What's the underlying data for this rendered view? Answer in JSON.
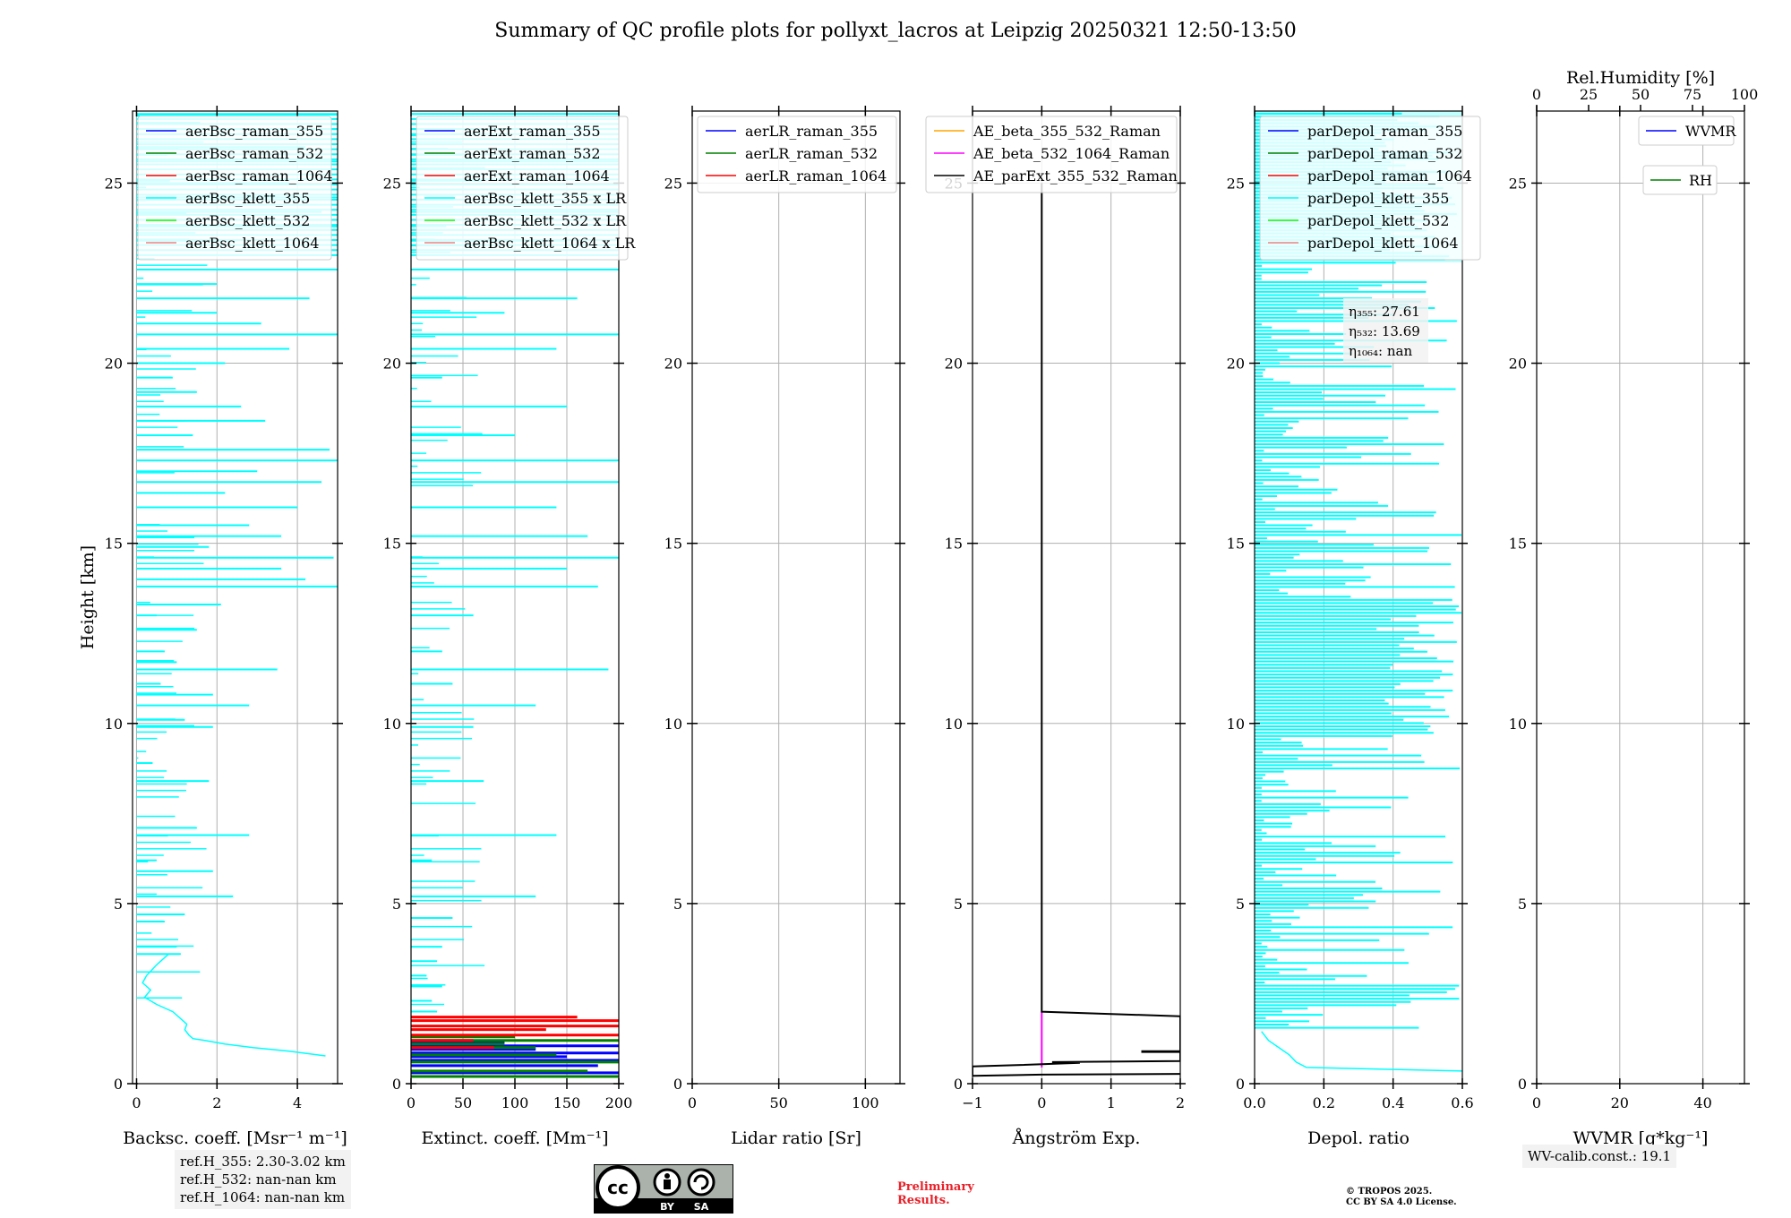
{
  "title": "Summary of QC profile plots for pollyxt_lacros at Leipzig 20250321 12:50-13:50",
  "y_label": "Height [km]",
  "colors": {
    "raman_355": "#0000ff",
    "raman_532": "#008000",
    "raman_1064": "#ff0000",
    "klett_355": "#00ffff",
    "klett_532": "#00ff00",
    "klett_1064": "#f08080",
    "ae_beta_355_532": "#ffa500",
    "ae_beta_532_1064": "#ff00ff",
    "ae_parext": "#000000",
    "grid": "#b0b0b0",
    "prelim": "#e8222a"
  },
  "chart_data": [
    {
      "type": "line",
      "panel": "backscatter",
      "xlabel": "Backsc. coeff. [Msr⁻¹ m⁻¹]",
      "xlim": [
        -0.1,
        5.0
      ],
      "ylim": [
        0,
        27
      ],
      "xticks": [
        "0",
        "2",
        "4"
      ],
      "yticks": [
        "0",
        "5",
        "10",
        "15",
        "20",
        "25"
      ],
      "legend": [
        "aerBsc_raman_355",
        "aerBsc_raman_532",
        "aerBsc_raman_1064",
        "aerBsc_klett_355",
        "aerBsc_klett_532",
        "aerBsc_klett_1064"
      ],
      "series": [
        {
          "name": "aerBsc_klett_355",
          "profile_h": [
            0.77,
            0.9,
            1.0,
            1.1,
            1.2,
            1.25,
            1.35,
            1.5,
            1.65,
            1.8,
            2.0,
            2.2,
            2.4,
            2.6,
            2.8,
            3.0,
            3.3,
            3.6
          ],
          "profile_x": [
            4.7,
            3.8,
            2.9,
            2.2,
            1.7,
            1.4,
            1.3,
            1.2,
            1.25,
            1.1,
            0.9,
            0.5,
            0.2,
            0.35,
            0.15,
            0.25,
            0.5,
            0.8
          ],
          "spikes": [
            [
              3.6,
              1.1
            ],
            [
              3.8,
              1.0
            ],
            [
              4.5,
              0.7
            ],
            [
              4.7,
              1.2
            ],
            [
              5.2,
              2.4
            ],
            [
              5.9,
              1.9
            ],
            [
              6.2,
              0.5
            ],
            [
              6.9,
              2.8
            ],
            [
              7.1,
              1.5
            ],
            [
              8.4,
              1.8
            ],
            [
              8.9,
              0.4
            ],
            [
              9.9,
              1.9
            ],
            [
              10.1,
              1.2
            ],
            [
              10.5,
              2.8
            ],
            [
              10.8,
              1.9
            ],
            [
              11.1,
              0.6
            ],
            [
              11.5,
              3.5
            ],
            [
              11.7,
              1.0
            ],
            [
              12.0,
              0.7
            ],
            [
              12.6,
              1.5
            ],
            [
              13.0,
              0.5
            ],
            [
              13.3,
              2.1
            ],
            [
              13.8,
              5.0
            ],
            [
              14.0,
              4.2
            ],
            [
              14.3,
              3.6
            ],
            [
              14.6,
              4.9
            ],
            [
              14.9,
              1.8
            ],
            [
              15.2,
              3.6
            ],
            [
              15.5,
              2.8
            ],
            [
              16.0,
              4.0
            ],
            [
              16.4,
              2.2
            ],
            [
              16.7,
              4.6
            ],
            [
              17.0,
              3.0
            ],
            [
              17.3,
              5.0
            ],
            [
              17.6,
              4.8
            ],
            [
              18.0,
              1.4
            ],
            [
              18.4,
              3.2
            ],
            [
              18.8,
              2.6
            ],
            [
              19.2,
              1.5
            ],
            [
              19.6,
              0.9
            ],
            [
              20.0,
              2.2
            ],
            [
              20.4,
              3.8
            ],
            [
              20.8,
              5.0
            ],
            [
              21.1,
              3.1
            ],
            [
              21.4,
              2.0
            ],
            [
              21.8,
              4.3
            ],
            [
              22.2,
              2.0
            ],
            [
              22.6,
              5.0
            ],
            [
              23.0,
              3.4
            ],
            [
              23.4,
              2.5
            ],
            [
              23.8,
              5.0
            ],
            [
              24.2,
              4.6
            ],
            [
              24.6,
              5.0
            ],
            [
              25.0,
              3.8
            ],
            [
              25.6,
              5.0
            ],
            [
              26.0,
              4.2
            ],
            [
              26.5,
              5.0
            ],
            [
              26.9,
              5.0
            ]
          ]
        }
      ]
    },
    {
      "type": "line",
      "panel": "extinction",
      "xlabel": "Extinct. coeff. [Mm⁻¹]",
      "xlim": [
        0,
        200
      ],
      "ylim": [
        0,
        27
      ],
      "xticks": [
        "0",
        "50",
        "100",
        "150",
        "200"
      ],
      "yticks": [
        "0",
        "5",
        "10",
        "15",
        "20",
        "25"
      ],
      "legend": [
        "aerExt_raman_355",
        "aerExt_raman_532",
        "aerExt_raman_1064",
        "aerBsc_klett_355 x LR",
        "aerBsc_klett_532 x LR",
        "aerBsc_klett_1064 x LR"
      ],
      "series": [
        {
          "name": "aerExt_raman_355",
          "spikes": [
            [
              0.3,
              200
            ],
            [
              0.5,
              180
            ],
            [
              0.65,
              200
            ],
            [
              0.75,
              150
            ],
            [
              0.85,
              200
            ],
            [
              0.95,
              120
            ],
            [
              1.05,
              200
            ],
            [
              1.15,
              90
            ]
          ]
        },
        {
          "name": "aerExt_raman_532",
          "spikes": [
            [
              0.2,
              200
            ],
            [
              0.35,
              170
            ],
            [
              0.6,
              200
            ],
            [
              0.8,
              140
            ],
            [
              1.0,
              120
            ],
            [
              1.1,
              90
            ],
            [
              1.2,
              200
            ],
            [
              1.3,
              100
            ]
          ]
        },
        {
          "name": "aerExt_raman_1064",
          "spikes": [
            [
              1.0,
              80
            ],
            [
              1.2,
              60
            ],
            [
              1.35,
              200
            ],
            [
              1.5,
              130
            ],
            [
              1.6,
              200
            ],
            [
              1.75,
              200
            ],
            [
              1.85,
              160
            ]
          ]
        },
        {
          "name": "aerBsc_klett_355 x LR",
          "spikes": [
            [
              2.0,
              25
            ],
            [
              2.3,
              20
            ],
            [
              2.7,
              30
            ],
            [
              3.0,
              15
            ],
            [
              3.4,
              25
            ],
            [
              3.8,
              30
            ],
            [
              4.6,
              40
            ],
            [
              5.2,
              120
            ],
            [
              6.2,
              20
            ],
            [
              6.9,
              140
            ],
            [
              8.4,
              70
            ],
            [
              9.9,
              60
            ],
            [
              10.5,
              120
            ],
            [
              11.1,
              40
            ],
            [
              11.5,
              190
            ],
            [
              12.0,
              30
            ],
            [
              13.0,
              60
            ],
            [
              13.8,
              180
            ],
            [
              14.3,
              150
            ],
            [
              14.6,
              200
            ],
            [
              15.2,
              170
            ],
            [
              16.0,
              140
            ],
            [
              16.7,
              200
            ],
            [
              17.3,
              200
            ],
            [
              18.0,
              100
            ],
            [
              18.8,
              150
            ],
            [
              19.6,
              30
            ],
            [
              20.4,
              140
            ],
            [
              20.8,
              200
            ],
            [
              21.4,
              90
            ],
            [
              21.8,
              160
            ],
            [
              22.6,
              200
            ],
            [
              23.4,
              150
            ],
            [
              24.2,
              200
            ],
            [
              25.6,
              200
            ],
            [
              26.5,
              200
            ]
          ]
        }
      ]
    },
    {
      "type": "line",
      "panel": "lidar_ratio",
      "xlabel": "Lidar ratio [Sr]",
      "xlim": [
        0,
        120
      ],
      "ylim": [
        0,
        27
      ],
      "xticks": [
        "0",
        "50",
        "100"
      ],
      "yticks": [
        "0",
        "5",
        "10",
        "15",
        "20",
        "25"
      ],
      "legend": [
        "aerLR_raman_355",
        "aerLR_raman_532",
        "aerLR_raman_1064"
      ],
      "series": []
    },
    {
      "type": "line",
      "panel": "angstrom",
      "xlabel": "Ångström Exp.",
      "xlim": [
        -1,
        2
      ],
      "ylim": [
        0,
        27
      ],
      "xticks": [
        "−1",
        "0",
        "1",
        "2"
      ],
      "yticks": [
        "0",
        "5",
        "10",
        "15",
        "20",
        "25"
      ],
      "legend": [
        "AE_beta_355_532_Raman",
        "AE_beta_532_1064_Raman",
        "AE_parExt_355_532_Raman"
      ],
      "series": [
        {
          "name": "AE_beta_532_1064_Raman",
          "x": [
            0,
            0
          ],
          "h": [
            0.45,
            2.0
          ]
        },
        {
          "name": "AE_parExt_355_532_Raman",
          "x": [
            0,
            0,
            2.0,
            2.0,
            1.45,
            1.45,
            2.0,
            2.0,
            0.15,
            0.55,
            -0.3,
            -1.0,
            -1.0,
            0.0,
            2.0
          ],
          "h": [
            25.0,
            2.0,
            1.87,
            0.9,
            0.9,
            0.88,
            0.88,
            0.63,
            0.6,
            0.58,
            0.52,
            0.48,
            0.22,
            0.25,
            0.27
          ]
        }
      ]
    },
    {
      "type": "line",
      "panel": "depolarization",
      "xlabel": "Depol. ratio",
      "xlim": [
        0.0,
        0.6
      ],
      "ylim": [
        0,
        27
      ],
      "xticks": [
        "0.0",
        "0.2",
        "0.4",
        "0.6"
      ],
      "yticks": [
        "0",
        "5",
        "10",
        "15",
        "20",
        "25"
      ],
      "legend": [
        "parDepol_raman_355",
        "parDepol_raman_532",
        "parDepol_raman_1064",
        "parDepol_klett_355",
        "parDepol_klett_532",
        "parDepol_klett_1064"
      ],
      "series": [
        {
          "name": "parDepol_klett_355",
          "profile_h": [
            0.35,
            0.45,
            0.6,
            0.8,
            1.0,
            1.2,
            1.45
          ],
          "profile_x": [
            0.6,
            0.15,
            0.12,
            0.1,
            0.07,
            0.04,
            0.02
          ],
          "spikes": "dense random spikes from 1.5 km to 27 km, mostly reaching 0.1–0.6"
        }
      ],
      "eta_labels": [
        "27.61",
        "13.69",
        "nan"
      ]
    },
    {
      "type": "line",
      "panel": "water_vapor",
      "xlabel": "WVMR [g*kg⁻¹]",
      "top_xlabel": "Rel.Humidity [%]",
      "xlim": [
        0,
        50
      ],
      "top_xlim": [
        0,
        100
      ],
      "ylim": [
        0,
        27
      ],
      "xticks": [
        "0",
        "20",
        "40"
      ],
      "top_xticks": [
        "0",
        "25",
        "50",
        "75",
        "100"
      ],
      "yticks": [
        "0",
        "5",
        "10",
        "15",
        "20",
        "25"
      ],
      "legend": [
        "WVMR",
        "RH"
      ],
      "series": []
    }
  ],
  "eta_names": [
    "η₃₅₅",
    "η₅₃₂",
    "η₁₀₆₄"
  ],
  "ref_heights": [
    "ref.H_355: 2.30-3.02 km",
    "ref.H_532: nan-nan km",
    "ref.H_1064: nan-nan km"
  ],
  "wv_calib": "WV-calib.const.: 19.1",
  "license_badge": {
    "cc": "cc",
    "by": "BY",
    "sa": "SA"
  },
  "prelim_lines": [
    "Preliminary",
    "Results."
  ],
  "copyright_lines": [
    "© TROPOS 2025.",
    "CC BY SA 4.0 License."
  ]
}
